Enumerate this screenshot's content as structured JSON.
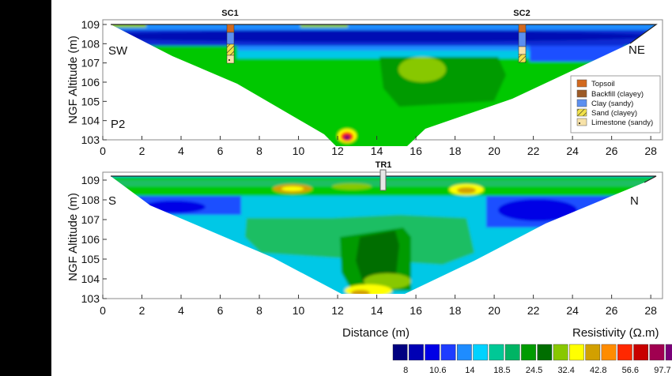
{
  "chart_data": [
    {
      "type": "heatmap",
      "profile_label": "P2",
      "ylabel": "NGF Altitude (m)",
      "xlim": [
        0,
        28.6
      ],
      "ylim": [
        103,
        109
      ],
      "x_ticks": [
        "0",
        "2",
        "4",
        "6",
        "8",
        "10",
        "12",
        "14",
        "16",
        "18",
        "20",
        "22",
        "24",
        "26",
        "28"
      ],
      "y_ticks": [
        "109",
        "108",
        "107",
        "106",
        "105",
        "104",
        "103"
      ],
      "orientation_left": "SW",
      "orientation_right": "NE",
      "boreholes": [
        {
          "name": "SC1",
          "x": 6.6
        },
        {
          "name": "SC2",
          "x": 21.6
        }
      ],
      "lithology_legend": [
        {
          "label": "Topsoil",
          "color": "#d2691e"
        },
        {
          "label": "Backfill (clayey)",
          "color": "#9c5a26"
        },
        {
          "label": "Clay (sandy)",
          "color": "#5b8ff0"
        },
        {
          "label": "Sand (clayey)",
          "color": "#f2e24a"
        },
        {
          "label": "Limestone (sandy)",
          "color": "#f7e2a8"
        }
      ]
    },
    {
      "type": "heatmap",
      "ylabel": "NGF Altitude (m)",
      "xlim": [
        0,
        28.6
      ],
      "ylim": [
        103,
        109
      ],
      "x_ticks": [
        "0",
        "2",
        "4",
        "6",
        "8",
        "10",
        "12",
        "14",
        "16",
        "18",
        "20",
        "22",
        "24",
        "26",
        "28"
      ],
      "y_ticks": [
        "109",
        "108",
        "107",
        "106",
        "105",
        "104",
        "103"
      ],
      "orientation_left": "S",
      "orientation_right": "N",
      "trench": {
        "name": "TR1",
        "x": 14.5
      }
    }
  ],
  "xlabel": "Distance (m)",
  "colorbar": {
    "title": "Resistivity (Ω.m)",
    "labels": [
      "8",
      "10.6",
      "14",
      "18.5",
      "24.5",
      "32.4",
      "42.8",
      "56.6",
      "97.7"
    ],
    "colors": [
      "#000080",
      "#0000b4",
      "#0000e6",
      "#1e3cff",
      "#1e8cff",
      "#00d2ff",
      "#00c896",
      "#00b464",
      "#009b00",
      "#006e00",
      "#88c800",
      "#ffff00",
      "#d2a000",
      "#ff8c00",
      "#ff2800",
      "#c80000",
      "#a00050",
      "#7a0078",
      "#46003c"
    ]
  }
}
